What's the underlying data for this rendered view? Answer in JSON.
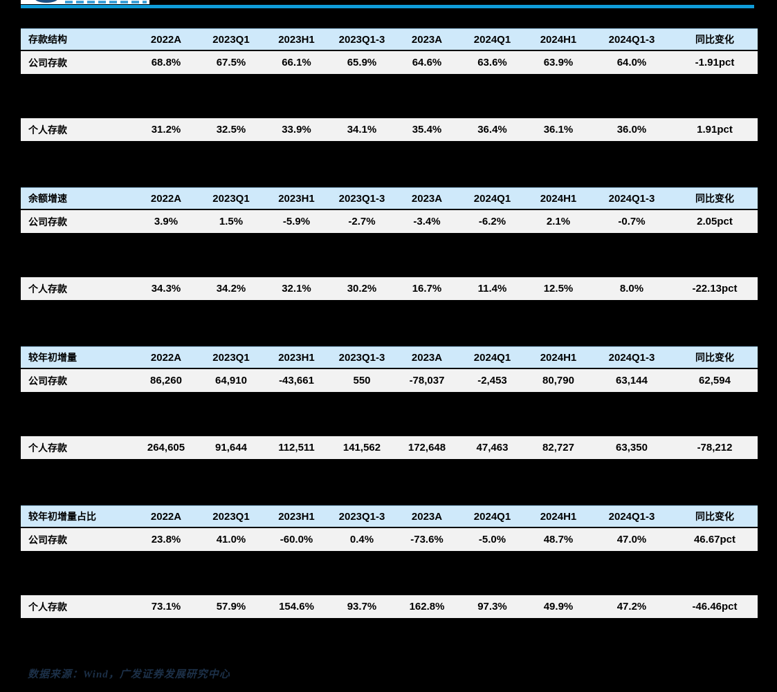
{
  "colors": {
    "page_background": "#000000",
    "accent_rule": "#0F9CD9",
    "table_header_bg": "#CFE9FA",
    "table_row_bg": "#F2F2F2",
    "source_text": "#1C3048",
    "logo_emblem": "#1B4F83"
  },
  "logo": {
    "name": "gf-securities-logo-fragment"
  },
  "columns": [
    "2022A",
    "2023Q1",
    "2023H1",
    "2023Q1-3",
    "2023A",
    "2024Q1",
    "2024H1",
    "2024Q1-3",
    "同比变化"
  ],
  "tables": [
    {
      "title": "存款结构",
      "rows": [
        {
          "label": "公司存款",
          "values": [
            "68.8%",
            "67.5%",
            "66.1%",
            "65.9%",
            "64.6%",
            "63.6%",
            "63.9%",
            "64.0%",
            "-1.91pct"
          ]
        },
        {
          "label": "个人存款",
          "values": [
            "31.2%",
            "32.5%",
            "33.9%",
            "34.1%",
            "35.4%",
            "36.4%",
            "36.1%",
            "36.0%",
            "1.91pct"
          ]
        }
      ]
    },
    {
      "title": "余额增速",
      "rows": [
        {
          "label": "公司存款",
          "values": [
            "3.9%",
            "1.5%",
            "-5.9%",
            "-2.7%",
            "-3.4%",
            "-6.2%",
            "2.1%",
            "-0.7%",
            "2.05pct"
          ]
        },
        {
          "label": "个人存款",
          "values": [
            "34.3%",
            "34.2%",
            "32.1%",
            "30.2%",
            "16.7%",
            "11.4%",
            "12.5%",
            "8.0%",
            "-22.13pct"
          ]
        }
      ]
    },
    {
      "title": "较年初增量",
      "rows": [
        {
          "label": "公司存款",
          "values": [
            "86,260",
            "64,910",
            "-43,661",
            "550",
            "-78,037",
            "-2,453",
            "80,790",
            "63,144",
            "62,594"
          ]
        },
        {
          "label": "个人存款",
          "values": [
            "264,605",
            "91,644",
            "112,511",
            "141,562",
            "172,648",
            "47,463",
            "82,727",
            "63,350",
            "-78,212"
          ]
        }
      ]
    },
    {
      "title": "较年初增量占比",
      "rows": [
        {
          "label": "公司存款",
          "values": [
            "23.8%",
            "41.0%",
            "-60.0%",
            "0.4%",
            "-73.6%",
            "-5.0%",
            "48.7%",
            "47.0%",
            "46.67pct"
          ]
        },
        {
          "label": "个人存款",
          "values": [
            "73.1%",
            "57.9%",
            "154.6%",
            "93.7%",
            "162.8%",
            "97.3%",
            "49.9%",
            "47.2%",
            "-46.46pct"
          ]
        }
      ]
    }
  ],
  "footer": {
    "source_text": "数据来源：Wind，广发证券发展研究中心"
  }
}
